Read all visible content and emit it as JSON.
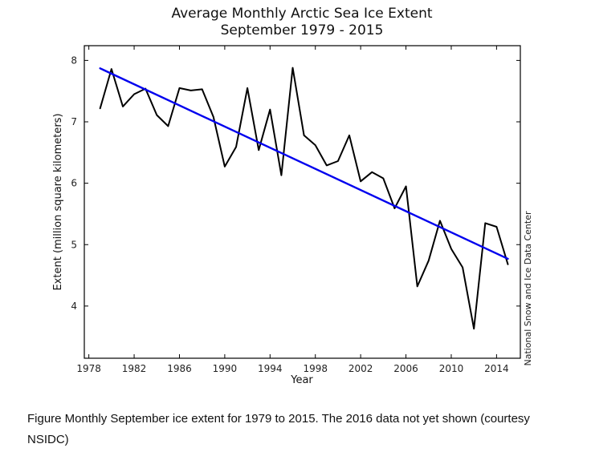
{
  "chart": {
    "title_line1": "Average Monthly Arctic Sea Ice Extent",
    "title_line2": "September 1979 - 2015",
    "ylabel": "Extent (million square kilometers)",
    "xlabel": "Year",
    "credit": "National Snow and Ice Data Center"
  },
  "caption": {
    "line1": "Figure Monthly September ice extent for 1979 to 2015.  The 2016 data not yet shown (courtesy",
    "line2": "NSIDC)"
  },
  "chart_data": {
    "type": "line",
    "title": "Average Monthly Arctic Sea Ice Extent, September 1979 - 2015",
    "xlabel": "Year",
    "ylabel": "Extent (million square kilometers)",
    "x_ticks": [
      1978,
      1982,
      1986,
      1990,
      1994,
      1998,
      2002,
      2006,
      2010,
      2014
    ],
    "y_ticks": [
      4,
      5,
      6,
      7,
      8
    ],
    "xlim": [
      1977.6,
      2016.1
    ],
    "ylim": [
      3.15,
      8.24
    ],
    "grid": false,
    "legend": "none",
    "series": [
      {
        "name": "September ice extent",
        "color": "#000000",
        "width": 2,
        "x": [
          1979,
          1980,
          1981,
          1982,
          1983,
          1984,
          1985,
          1986,
          1987,
          1988,
          1989,
          1990,
          1991,
          1992,
          1993,
          1994,
          1995,
          1996,
          1997,
          1998,
          1999,
          2000,
          2001,
          2002,
          2003,
          2004,
          2005,
          2006,
          2007,
          2008,
          2009,
          2010,
          2011,
          2012,
          2013,
          2014,
          2015
        ],
        "values": [
          7.22,
          7.86,
          7.25,
          7.45,
          7.54,
          7.11,
          6.93,
          7.55,
          7.51,
          7.53,
          7.08,
          6.27,
          6.59,
          7.55,
          6.54,
          7.2,
          6.13,
          7.88,
          6.78,
          6.62,
          6.29,
          6.36,
          6.78,
          6.03,
          6.18,
          6.08,
          5.59,
          5.95,
          4.32,
          4.74,
          5.39,
          4.93,
          4.63,
          3.63,
          5.35,
          5.29,
          4.68
        ]
      },
      {
        "name": "Linear trend",
        "color": "#0000ee",
        "width": 2.4,
        "x": [
          1979,
          2015
        ],
        "values": [
          7.87,
          4.77
        ]
      }
    ]
  }
}
